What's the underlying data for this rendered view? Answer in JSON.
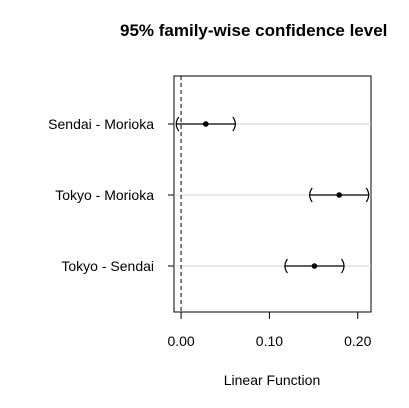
{
  "chart_data": {
    "type": "scatter",
    "title": "95% family-wise confidence level",
    "xlabel": "Linear Function",
    "ylabel": "",
    "xlim": [
      -0.008,
      0.215
    ],
    "xticks": [
      0.0,
      0.1,
      0.2
    ],
    "xtick_labels": [
      "0.00",
      "0.10",
      "0.20"
    ],
    "reference_line": 0,
    "grid": "horizontal",
    "comparisons": [
      {
        "label": "Sendai - Morioka",
        "estimate": 0.028,
        "lwr": -0.006,
        "upr": 0.062
      },
      {
        "label": "Tokyo - Morioka",
        "estimate": 0.179,
        "lwr": 0.145,
        "upr": 0.213
      },
      {
        "label": "Tokyo - Sendai",
        "estimate": 0.151,
        "lwr": 0.117,
        "upr": 0.185
      }
    ]
  }
}
